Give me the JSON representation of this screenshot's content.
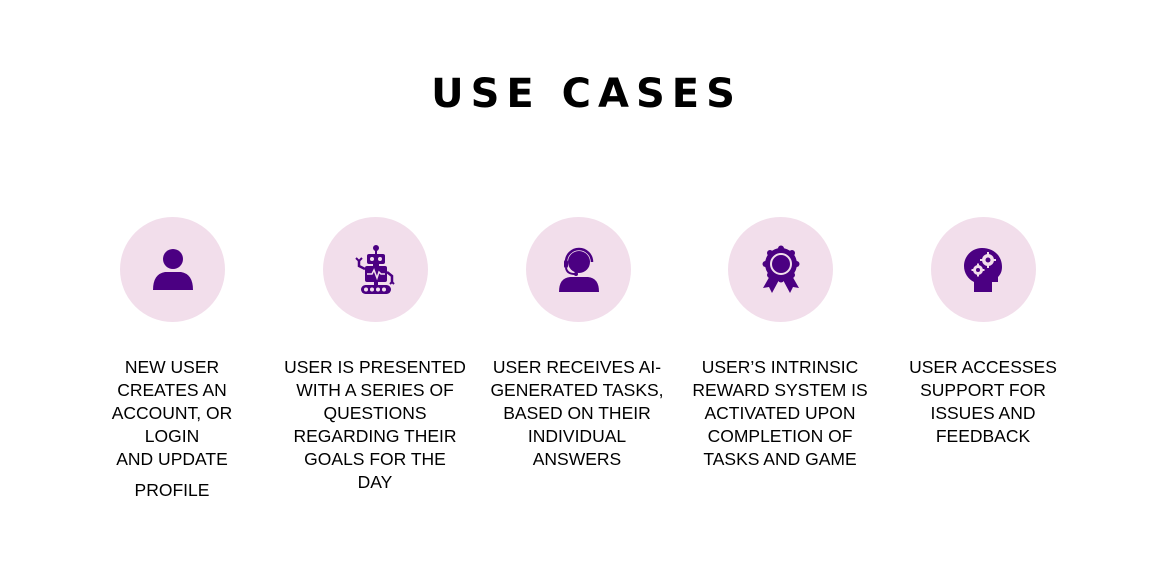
{
  "page": {
    "title": "USE CASES"
  },
  "colors": {
    "circle_background": "#f2deeb",
    "icon": "#4b0082"
  },
  "use_cases": [
    {
      "icon": "user-icon",
      "lines": [
        "NEW USER",
        "CREATES AN",
        "ACCOUNT, OR",
        "LOGIN",
        "AND UPDATE",
        "PROFILE"
      ]
    },
    {
      "icon": "robot-icon",
      "lines": [
        "USER IS PRESENTED",
        "WITH A SERIES OF",
        "QUESTIONS",
        "REGARDING THEIR",
        "GOALS FOR THE",
        "DAY"
      ]
    },
    {
      "icon": "support-agent-icon",
      "lines": [
        "USER RECEIVES AI-",
        "GENERATED TASKS,",
        "BASED ON THEIR",
        "INDIVIDUAL",
        "ANSWERS"
      ]
    },
    {
      "icon": "award-ribbon-icon",
      "lines": [
        "USER’S INTRINSIC",
        "REWARD SYSTEM IS",
        "ACTIVATED UPON",
        "COMPLETION OF",
        "TASKS AND GAME"
      ]
    },
    {
      "icon": "head-gears-icon",
      "lines": [
        "USER ACCESSES",
        "SUPPORT FOR",
        "ISSUES AND",
        "FEEDBACK"
      ]
    }
  ]
}
